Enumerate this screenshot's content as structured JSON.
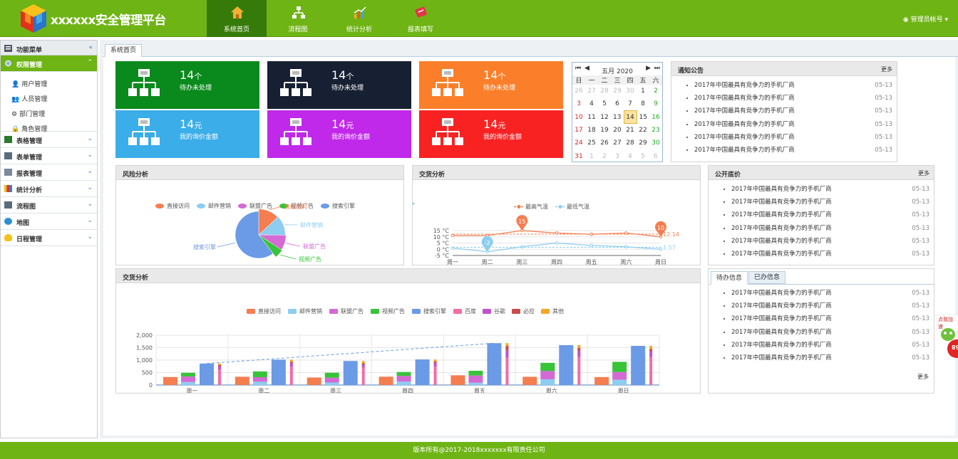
{
  "app": {
    "title": "xxxxxx安全管理平台"
  },
  "nav": [
    {
      "label": "系统首页"
    },
    {
      "label": "流程图"
    },
    {
      "label": "统计分析"
    },
    {
      "label": "报表填写"
    }
  ],
  "user": {
    "label": "管理员帐号"
  },
  "sidebar": {
    "head": "功能菜单",
    "active": "权限管理",
    "sub": [
      "用户管理",
      "人员管理",
      "部门管理",
      "角色管理"
    ],
    "items": [
      "表格管理",
      "表单管理",
      "报表管理",
      "统计分析",
      "流程图",
      "地图",
      "日程管理"
    ]
  },
  "tab": {
    "label": "系统首页"
  },
  "tiles": [
    {
      "num": "14",
      "unit": "个",
      "caption": "待办未处理",
      "color": "#0a8a1c"
    },
    {
      "num": "14",
      "unit": "个",
      "caption": "待办未处理",
      "color": "#172033"
    },
    {
      "num": "14",
      "unit": "个",
      "caption": "待办未处理",
      "color": "#fb7f2a"
    },
    {
      "num": "14",
      "unit": "元",
      "caption": "我的询价金额",
      "color": "#3bade8"
    },
    {
      "num": "14",
      "unit": "元",
      "caption": "我的询价金额",
      "color": "#c028ea"
    },
    {
      "num": "14",
      "unit": "元",
      "caption": "我的询价金额",
      "color": "#f92222"
    }
  ],
  "calendar": {
    "title": "五月 2020",
    "weekdays": [
      "日",
      "一",
      "二",
      "三",
      "四",
      "五",
      "六"
    ],
    "rows": [
      [
        "26",
        "27",
        "28",
        "29",
        "30",
        "1",
        "2"
      ],
      [
        "3",
        "4",
        "5",
        "6",
        "7",
        "8",
        "9"
      ],
      [
        "10",
        "11",
        "12",
        "13",
        "14",
        "15",
        "16"
      ],
      [
        "17",
        "18",
        "19",
        "20",
        "21",
        "22",
        "23"
      ],
      [
        "24",
        "25",
        "26",
        "27",
        "28",
        "29",
        "30"
      ],
      [
        "31",
        "1",
        "2",
        "3",
        "4",
        "5",
        "6"
      ]
    ],
    "today": "14"
  },
  "notice": {
    "title": "通知公告",
    "more": "更多",
    "items": [
      {
        "t": "2017年中国最具有竞争力的手机厂商",
        "d": "05-13"
      },
      {
        "t": "2017年中国最具有竞争力的手机厂商",
        "d": "05-13"
      },
      {
        "t": "2017年中国最具有竞争力的手机厂商",
        "d": "05-13"
      },
      {
        "t": "2017年中国最具有竞争力的手机厂商",
        "d": "05-13"
      },
      {
        "t": "2017年中国最具有竞争力的手机厂商",
        "d": "05-13"
      },
      {
        "t": "2017年中国最具有竞争力的手机厂商",
        "d": "05-13"
      }
    ]
  },
  "price": {
    "title": "公开底价",
    "more": "更多",
    "items": [
      {
        "t": "2017年中国最具有竞争力的手机厂商",
        "d": "05-13"
      },
      {
        "t": "2017年中国最具有竞争力的手机厂商",
        "d": "05-13"
      },
      {
        "t": "2017年中国最具有竞争力的手机厂商",
        "d": "05-13"
      },
      {
        "t": "2017年中国最具有竞争力的手机厂商",
        "d": "05-13"
      },
      {
        "t": "2017年中国最具有竞争力的手机厂商",
        "d": "05-13"
      },
      {
        "t": "2017年中国最具有竞争力的手机厂商",
        "d": "05-13"
      }
    ]
  },
  "todo": {
    "tabs": [
      "待办信息",
      "已办信息"
    ],
    "more": "更多",
    "items": [
      {
        "t": "2017年中国最具有竞争力的手机厂商",
        "d": "05-13"
      },
      {
        "t": "2017年中国最具有竞争力的手机厂商",
        "d": "05-13"
      },
      {
        "t": "2017年中国最具有竞争力的手机厂商",
        "d": "05-13"
      },
      {
        "t": "2017年中国最具有竞争力的手机厂商",
        "d": "05-13"
      },
      {
        "t": "2017年中国最具有竞争力的手机厂商",
        "d": "05-13"
      },
      {
        "t": "2017年中国最具有竞争力的手机厂商",
        "d": "05-13"
      }
    ]
  },
  "panels": {
    "risk": "风险分析",
    "trade": "交货分析",
    "trade2": "交货分析"
  },
  "badge": {
    "text": "点我加速",
    "num": "89"
  },
  "footer": "版本所有@2017-2018xxxxxxx有限责任公司",
  "chart_data": [
    {
      "type": "pie",
      "legend": [
        "直接访问",
        "邮件营销",
        "联盟广告",
        "视频广告",
        "搜索引擎"
      ],
      "values": [
        335,
        310,
        234,
        135,
        1548
      ],
      "colors": [
        "#f57d4f",
        "#8dcdf0",
        "#d46bd4",
        "#37c439",
        "#6b9ae6"
      ]
    },
    {
      "type": "line",
      "categories": [
        "周一",
        "周二",
        "周三",
        "周四",
        "周五",
        "周六",
        "周日"
      ],
      "series": [
        {
          "name": "最高气温",
          "values": [
            11,
            11,
            15,
            13,
            12,
            13,
            10
          ],
          "color": "#f57d4f",
          "avg": "12.14"
        },
        {
          "name": "最低气温",
          "values": [
            1,
            -2,
            2,
            5,
            3,
            2,
            0
          ],
          "color": "#8dcdf0",
          "avg": "1.57"
        }
      ],
      "ylim": [
        -5,
        15
      ],
      "yticks": [
        "15 °C",
        "10 °C",
        "5 °C",
        "0 °C",
        "-5 °C"
      ],
      "markers": {
        "max": "15",
        "min": "-2",
        "max2": "10"
      }
    },
    {
      "type": "bar",
      "categories": [
        "周一",
        "周二",
        "周三",
        "周四",
        "周五",
        "周六",
        "周日"
      ],
      "legend": [
        "直接访问",
        "邮件营销",
        "联盟广告",
        "视频广告",
        "搜索引擎",
        "百度",
        "谷歌",
        "必应",
        "其他"
      ],
      "colors": [
        "#f57d4f",
        "#8dcdf0",
        "#d46bd4",
        "#37c439",
        "#6b9ae6",
        "#f36ca6",
        "#c04fd0",
        "#c94b4b",
        "#f3a62a"
      ],
      "direct": [
        320,
        332,
        301,
        334,
        390,
        330,
        320
      ],
      "stack": [
        [
          120,
          132,
          101,
          134,
          90,
          230,
          210
        ],
        [
          220,
          182,
          191,
          234,
          290,
          330,
          310
        ],
        [
          150,
          232,
          201,
          154,
          190,
          330,
          410
        ]
      ],
      "search": [
        862,
        1018,
        964,
        1026,
        1679,
        1600,
        1570
      ],
      "engines": [
        [
          620,
          732,
          701,
          734,
          1090,
          1130,
          1120
        ],
        [
          120,
          132,
          101,
          134,
          290,
          230,
          220
        ],
        [
          60,
          72,
          71,
          74,
          190,
          130,
          110
        ],
        [
          62,
          82,
          91,
          84,
          109,
          110,
          120
        ]
      ],
      "ylim": [
        0,
        2000
      ],
      "yticks": [
        "2,000",
        "1,500",
        "1,000",
        "500",
        "0"
      ]
    }
  ]
}
